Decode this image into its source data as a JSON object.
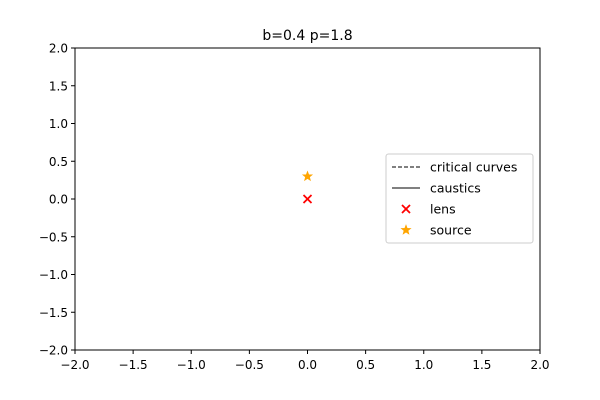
{
  "chart_data": {
    "type": "scatter",
    "title": "b=0.4 p=1.8",
    "xlabel": "",
    "ylabel": "",
    "xlim": [
      -2.0,
      2.0
    ],
    "ylim": [
      -2.0,
      2.0
    ],
    "xticks": [
      "−2.0",
      "−1.5",
      "−1.0",
      "−0.5",
      "0.0",
      "0.5",
      "1.0",
      "1.5",
      "2.0"
    ],
    "yticks": [
      "−2.0",
      "−1.5",
      "−1.0",
      "−0.5",
      "0.0",
      "0.5",
      "1.0",
      "1.5",
      "2.0"
    ],
    "grid": false,
    "legend_position": "center-right",
    "series": [
      {
        "name": "critical curves",
        "kind": "line",
        "style": "dashed",
        "color": "#000000",
        "x": [
          0.0
        ],
        "y": [
          0.0
        ]
      },
      {
        "name": "caustics",
        "kind": "line",
        "style": "solid",
        "color": "#000000",
        "x": [
          0.0
        ],
        "y": [
          0.0
        ]
      },
      {
        "name": "lens",
        "kind": "scatter",
        "marker": "x",
        "color": "#ff0000",
        "x": [
          0.0
        ],
        "y": [
          0.0
        ]
      },
      {
        "name": "source",
        "kind": "scatter",
        "marker": "star",
        "color": "#ffa500",
        "x": [
          0.0
        ],
        "y": [
          0.3
        ]
      }
    ]
  }
}
